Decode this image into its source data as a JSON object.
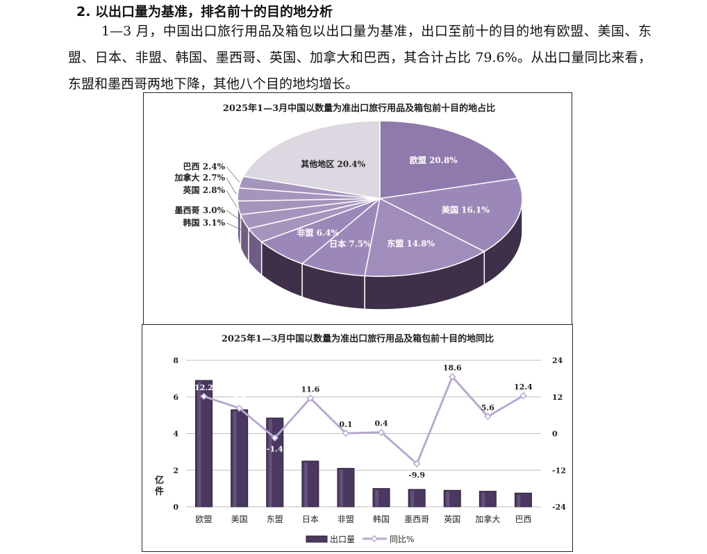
{
  "section": {
    "heading": "2. 以出口量为基准，排名前十的目的地分析",
    "paragraph": "1—3 月，中国出口旅行用品及箱包以出口量为基准，出口至前十的目的地有欧盟、美国、东盟、日本、非盟、韩国、墨西哥、英国、加拿大和巴西，其合计占比 79.6%。从出口量同比来看，东盟和墨西哥两地下降，其他八个目的地均增长。"
  },
  "chart_data": [
    {
      "type": "pie",
      "title": "2025年1—3月中国以数量为准出口旅行用品及箱包前十目的地占比",
      "slices": [
        {
          "label": "欧盟 20.8%",
          "name": "欧盟",
          "value": 20.8
        },
        {
          "label": "美国 16.1%",
          "name": "美国",
          "value": 16.1
        },
        {
          "label": "东盟 14.8%",
          "name": "东盟",
          "value": 14.8
        },
        {
          "label": "日本 7.5%",
          "name": "日本",
          "value": 7.5
        },
        {
          "label": "非盟 6.4%",
          "name": "非盟",
          "value": 6.4
        },
        {
          "label": "韩国 3.1%",
          "name": "韩国",
          "value": 3.1
        },
        {
          "label": "墨西哥 3.0%",
          "name": "墨西哥",
          "value": 3.0
        },
        {
          "label": "英国 2.8%",
          "name": "英国",
          "value": 2.8
        },
        {
          "label": "加拿大 2.7%",
          "name": "加拿大",
          "value": 2.7
        },
        {
          "label": "巴西 2.4%",
          "name": "巴西",
          "value": 2.4
        },
        {
          "label": "其他地区 20.4%",
          "name": "其他地区",
          "value": 20.4
        }
      ],
      "colors": {
        "top": "#9c88b8",
        "top_light": "#b7a8cd",
        "side": "#3e3048",
        "other": "#dcd7e1",
        "small": "#a595bd"
      }
    },
    {
      "type": "bar",
      "title": "2025年1—3月中国以数量为准出口旅行用品及箱包前十目的地同比",
      "categories": [
        "欧盟",
        "美国",
        "东盟",
        "日本",
        "非盟",
        "韩国",
        "墨西哥",
        "英国",
        "加拿大",
        "巴西"
      ],
      "series": [
        {
          "name": "出口量",
          "kind": "bar",
          "axis": "left",
          "values": [
            6.9,
            5.3,
            4.85,
            2.5,
            2.1,
            1.0,
            0.95,
            0.9,
            0.85,
            0.75
          ],
          "color": "#4a3860"
        },
        {
          "name": "同比%",
          "kind": "line",
          "axis": "right",
          "values": [
            12.2,
            8.3,
            -1.4,
            11.6,
            0.1,
            0.4,
            -9.9,
            18.6,
            5.6,
            12.4
          ],
          "labels": [
            "12.2",
            "8.3",
            "-1.4",
            "11.6",
            "0.1",
            "0.4",
            "-9.9",
            "18.6",
            "5.6",
            "12.4"
          ],
          "color": "#b8a9cf"
        }
      ],
      "ylabel": "亿件",
      "ylim": [
        0,
        8
      ],
      "y_ticks": [
        "8",
        "6",
        "4",
        "2",
        "0"
      ],
      "y2lim": [
        -24,
        24
      ],
      "y2_ticks": [
        "24",
        "12",
        "0",
        "-12",
        "-24"
      ],
      "grid": true,
      "legend": "bottom"
    }
  ]
}
